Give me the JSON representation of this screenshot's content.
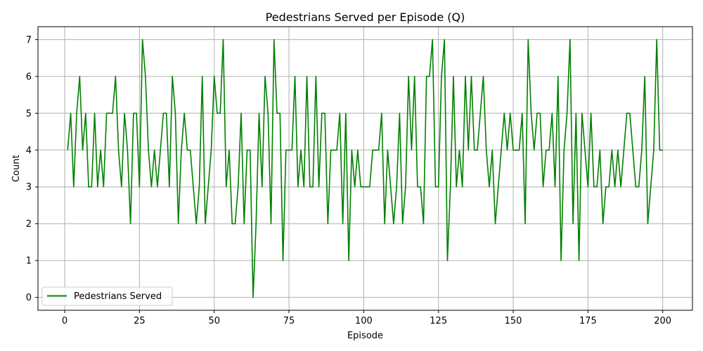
{
  "chart_data": {
    "type": "line",
    "title": "Pedestrians Served per Episode (Q)",
    "xlabel": "Episode",
    "ylabel": "Count",
    "xlim": [
      -8.95,
      209.95
    ],
    "ylim": [
      -0.35,
      7.35
    ],
    "xticks": [
      0,
      25,
      50,
      75,
      100,
      125,
      150,
      175,
      200
    ],
    "yticks": [
      0,
      1,
      2,
      3,
      4,
      5,
      6,
      7
    ],
    "grid": true,
    "legend_position": "lower-left",
    "series": [
      {
        "name": "Pedestrians Served",
        "color": "#008000",
        "x": [
          1,
          2,
          3,
          4,
          5,
          6,
          7,
          8,
          9,
          10,
          11,
          12,
          13,
          14,
          15,
          16,
          17,
          18,
          19,
          20,
          21,
          22,
          23,
          24,
          25,
          26,
          27,
          28,
          29,
          30,
          31,
          32,
          33,
          34,
          35,
          36,
          37,
          38,
          39,
          40,
          41,
          42,
          43,
          44,
          45,
          46,
          47,
          48,
          49,
          50,
          51,
          52,
          53,
          54,
          55,
          56,
          57,
          58,
          59,
          60,
          61,
          62,
          63,
          64,
          65,
          66,
          67,
          68,
          69,
          70,
          71,
          72,
          73,
          74,
          75,
          76,
          77,
          78,
          79,
          80,
          81,
          82,
          83,
          84,
          85,
          86,
          87,
          88,
          89,
          90,
          91,
          92,
          93,
          94,
          95,
          96,
          97,
          98,
          99,
          100,
          101,
          102,
          103,
          104,
          105,
          106,
          107,
          108,
          109,
          110,
          111,
          112,
          113,
          114,
          115,
          116,
          117,
          118,
          119,
          120,
          121,
          122,
          123,
          124,
          125,
          126,
          127,
          128,
          129,
          130,
          131,
          132,
          133,
          134,
          135,
          136,
          137,
          138,
          139,
          140,
          141,
          142,
          143,
          144,
          145,
          146,
          147,
          148,
          149,
          150,
          151,
          152,
          153,
          154,
          155,
          156,
          157,
          158,
          159,
          160,
          161,
          162,
          163,
          164,
          165,
          166,
          167,
          168,
          169,
          170,
          171,
          172,
          173,
          174,
          175,
          176,
          177,
          178,
          179,
          180,
          181,
          182,
          183,
          184,
          185,
          186,
          187,
          188,
          189,
          190,
          191,
          192,
          193,
          194,
          195,
          196,
          197,
          198,
          199,
          200
        ],
        "values": [
          4,
          5,
          3,
          5,
          6,
          4,
          5,
          3,
          3,
          5,
          3,
          4,
          3,
          5,
          5,
          5,
          6,
          4,
          3,
          5,
          4,
          2,
          5,
          5,
          3,
          7,
          6,
          4,
          3,
          4,
          3,
          4,
          5,
          5,
          3,
          6,
          5,
          2,
          4,
          5,
          4,
          4,
          3,
          2,
          3,
          6,
          2,
          3,
          4,
          6,
          5,
          5,
          7,
          3,
          4,
          2,
          2,
          3,
          5,
          2,
          4,
          4,
          0,
          2,
          5,
          3,
          6,
          5,
          2,
          7,
          5,
          5,
          1,
          4,
          4,
          4,
          6,
          3,
          4,
          3,
          6,
          3,
          3,
          6,
          3,
          5,
          5,
          2,
          4,
          4,
          4,
          5,
          2,
          5,
          1,
          4,
          3,
          4,
          3,
          3,
          3,
          3,
          4,
          4,
          4,
          5,
          2,
          4,
          3,
          2,
          3,
          5,
          2,
          3,
          6,
          4,
          6,
          3,
          3,
          2,
          6,
          6,
          7,
          3,
          3,
          6,
          7,
          1,
          3,
          6,
          3,
          4,
          3,
          6,
          4,
          6,
          4,
          4,
          5,
          6,
          4,
          3,
          4,
          2,
          3,
          4,
          5,
          4,
          5,
          4,
          4,
          4,
          5,
          2,
          7,
          5,
          4,
          5,
          5,
          3,
          4,
          4,
          5,
          3,
          6,
          1,
          4,
          5,
          7,
          2,
          5,
          1,
          5,
          4,
          3,
          5,
          3,
          3,
          4,
          2,
          3,
          3,
          4,
          3,
          4,
          3,
          4,
          5,
          5,
          4,
          3,
          3,
          4,
          6,
          2,
          3,
          4,
          7,
          4,
          4
        ]
      }
    ]
  }
}
